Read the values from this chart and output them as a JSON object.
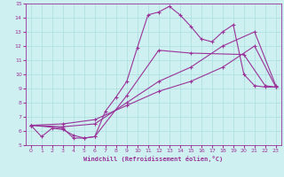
{
  "xlabel": "Windchill (Refroidissement éolien,°C)",
  "xlim": [
    0,
    23
  ],
  "ylim": [
    5,
    15
  ],
  "xticks": [
    0,
    1,
    2,
    3,
    4,
    5,
    6,
    7,
    8,
    9,
    10,
    11,
    12,
    13,
    14,
    15,
    16,
    17,
    18,
    19,
    20,
    21,
    22,
    23
  ],
  "yticks": [
    5,
    6,
    7,
    8,
    9,
    10,
    11,
    12,
    13,
    14,
    15
  ],
  "bg_color": "#cff0f0",
  "line_color": "#993399",
  "grid_color": "#aadddd",
  "series": [
    {
      "x": [
        0,
        1,
        2,
        3,
        4,
        5,
        6,
        7,
        8,
        9,
        10,
        11,
        12,
        13,
        14,
        15,
        16,
        17,
        18,
        19,
        20,
        21,
        22,
        23
      ],
      "y": [
        6.4,
        5.6,
        6.2,
        6.1,
        5.7,
        5.5,
        5.6,
        7.4,
        8.4,
        9.5,
        11.9,
        14.2,
        14.4,
        14.8,
        14.2,
        13.4,
        12.5,
        12.3,
        13.0,
        13.5,
        10.0,
        9.2,
        9.1,
        9.1
      ]
    },
    {
      "x": [
        0,
        3,
        4,
        5,
        6,
        9,
        12,
        15,
        20,
        22,
        23
      ],
      "y": [
        6.4,
        6.2,
        5.5,
        5.5,
        5.6,
        8.5,
        11.7,
        11.5,
        11.4,
        9.2,
        9.1
      ]
    },
    {
      "x": [
        0,
        3,
        6,
        9,
        12,
        15,
        18,
        21,
        23
      ],
      "y": [
        6.4,
        6.3,
        6.5,
        8.0,
        9.5,
        10.5,
        12.0,
        13.0,
        9.2
      ]
    },
    {
      "x": [
        0,
        3,
        6,
        9,
        12,
        15,
        18,
        21,
        23
      ],
      "y": [
        6.4,
        6.5,
        6.8,
        7.8,
        8.8,
        9.5,
        10.5,
        12.0,
        9.1
      ]
    }
  ]
}
